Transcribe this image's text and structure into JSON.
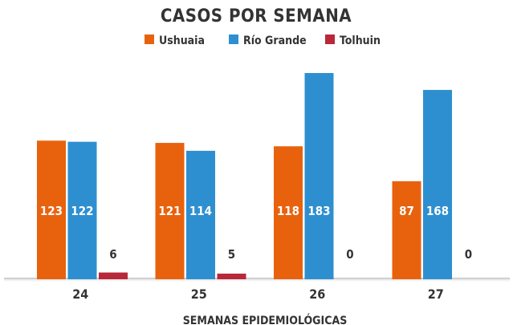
{
  "chart_data": {
    "type": "bar",
    "title": "CASOS POR SEMANA",
    "xlabel": "SEMANAS EPIDEMIOLÓGICAS",
    "ylabel": "",
    "categories": [
      "24",
      "25",
      "26",
      "27"
    ],
    "series": [
      {
        "name": "Ushuaia",
        "color": "#e8620e",
        "values": [
          123,
          121,
          118,
          87
        ]
      },
      {
        "name": "Río Grande",
        "color": "#2e8fd0",
        "values": [
          122,
          114,
          183,
          168
        ]
      },
      {
        "name": "Tolhuin",
        "color": "#b8283a",
        "values": [
          6,
          5,
          0,
          0
        ]
      }
    ],
    "ylim": [
      0,
      183
    ],
    "grid": false,
    "legend": "top-center",
    "data_labels": true
  }
}
